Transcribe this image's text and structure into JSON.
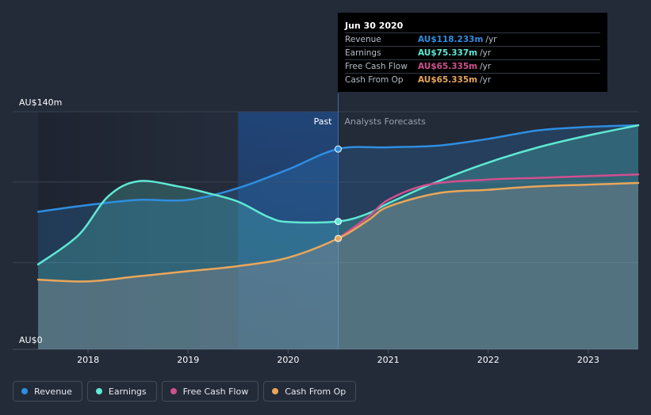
{
  "tooltip": {
    "date": "Jun 30 2020",
    "rows": [
      {
        "name": "Revenue",
        "value": "AU$118.233m",
        "unit": "/yr",
        "color": "#2e8ee0"
      },
      {
        "name": "Earnings",
        "value": "AU$75.337m",
        "unit": "/yr",
        "color": "#5fe8d4"
      },
      {
        "name": "Free Cash Flow",
        "value": "AU$65.335m",
        "unit": "/yr",
        "color": "#d0508f"
      },
      {
        "name": "Cash From Op",
        "value": "AU$65.335m",
        "unit": "/yr",
        "color": "#e9a65a"
      }
    ]
  },
  "regions": {
    "past": "Past",
    "forecast": "Analysts Forecasts"
  },
  "legend": [
    {
      "label": "Revenue",
      "color": "#2e8ee0"
    },
    {
      "label": "Earnings",
      "color": "#5fe8d4"
    },
    {
      "label": "Free Cash Flow",
      "color": "#d0508f"
    },
    {
      "label": "Cash From Op",
      "color": "#e9a65a"
    }
  ],
  "chart_data": {
    "type": "line",
    "y_tick_labels": [
      "AU$0",
      "AU$140m"
    ],
    "ylim": [
      0,
      140
    ],
    "xlim": [
      2017.5,
      2023.5
    ],
    "x_ticks": [
      2018,
      2019,
      2020,
      2021,
      2022,
      2023
    ],
    "divider_x": 2020.5,
    "series": [
      {
        "name": "Revenue",
        "color": "#2e8ee0",
        "x": [
          2017.5,
          2018.0,
          2018.5,
          2019.0,
          2019.5,
          2020.0,
          2020.5,
          2021.0,
          2021.5,
          2022.0,
          2022.5,
          2023.0,
          2023.5
        ],
        "y": [
          81,
          85,
          88,
          88,
          95,
          106,
          118,
          119,
          120,
          124,
          129,
          131,
          132
        ]
      },
      {
        "name": "Earnings",
        "color": "#5fe8d4",
        "x": [
          2017.5,
          2017.9,
          2018.2,
          2018.5,
          2018.9,
          2019.2,
          2019.5,
          2019.8,
          2020.0,
          2020.5,
          2020.8,
          2021.0,
          2021.5,
          2022.0,
          2022.5,
          2023.0,
          2023.5
        ],
        "y": [
          50,
          67,
          90,
          99,
          96,
          92,
          87,
          78,
          75,
          75.3,
          80,
          86,
          99,
          110,
          119,
          126,
          132
        ]
      },
      {
        "name": "Free Cash Flow",
        "color": "#d0508f",
        "x": [
          2020.5,
          2020.8,
          2021.0,
          2021.4,
          2022.0,
          2022.5,
          2023.0,
          2023.5
        ],
        "y": [
          65.3,
          78,
          88,
          97,
          100,
          101,
          102,
          103
        ]
      },
      {
        "name": "Cash From Op",
        "color": "#e9a65a",
        "x": [
          2017.5,
          2018.0,
          2018.5,
          2019.0,
          2019.5,
          2020.0,
          2020.5,
          2020.8,
          2021.0,
          2021.5,
          2022.0,
          2022.5,
          2023.0,
          2023.5
        ],
        "y": [
          41,
          40,
          43,
          46,
          49,
          54,
          65.3,
          76,
          84,
          92,
          94,
          96,
          97,
          98
        ]
      }
    ],
    "highlight_x": 2020.5
  }
}
